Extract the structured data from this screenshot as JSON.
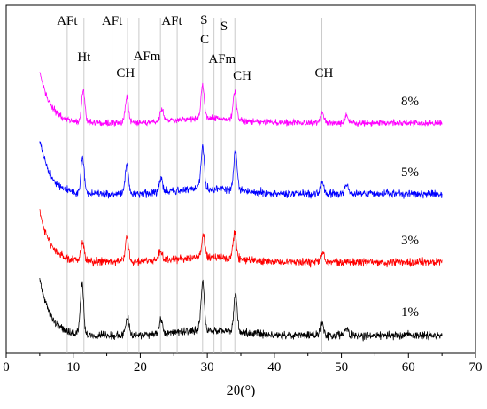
{
  "chart_data": {
    "type": "line",
    "title": "",
    "xlabel": "2θ(°)",
    "ylabel": "",
    "xlim": [
      0,
      70
    ],
    "xticks": [
      "0",
      "10",
      "20",
      "30",
      "40",
      "50",
      "60",
      "70"
    ],
    "x_range": [
      5,
      65
    ],
    "grid": false,
    "legend": "none",
    "series": [
      {
        "name": "8%",
        "color": "#ff00ff",
        "peaks": [
          [
            11.5,
            1.0
          ],
          [
            18.0,
            0.8
          ],
          [
            23.2,
            0.4
          ],
          [
            29.3,
            1.0
          ],
          [
            34.1,
            0.9
          ],
          [
            47.1,
            0.35
          ],
          [
            50.8,
            0.25
          ]
        ]
      },
      {
        "name": "5%",
        "color": "#0000ff",
        "peaks": [
          [
            11.4,
            1.1
          ],
          [
            18.0,
            0.9
          ],
          [
            23.1,
            0.4
          ],
          [
            29.3,
            1.2
          ],
          [
            34.2,
            1.2
          ],
          [
            47.1,
            0.4
          ],
          [
            50.8,
            0.25
          ]
        ]
      },
      {
        "name": "3%",
        "color": "#ff0000",
        "peaks": [
          [
            11.4,
            0.6
          ],
          [
            18.0,
            0.8
          ],
          [
            23.0,
            0.3
          ],
          [
            29.4,
            0.7
          ],
          [
            34.1,
            0.8
          ],
          [
            47.2,
            0.3
          ]
        ]
      },
      {
        "name": "1%",
        "color": "#000000",
        "peaks": [
          [
            11.3,
            1.4
          ],
          [
            18.1,
            0.5
          ],
          [
            23.1,
            0.4
          ],
          [
            29.3,
            1.4
          ],
          [
            34.2,
            1.1
          ],
          [
            47.1,
            0.4
          ],
          [
            50.8,
            0.2
          ]
        ]
      }
    ],
    "reference_lines_2theta": [
      9.1,
      11.6,
      15.8,
      18.1,
      19.8,
      23.0,
      25.5,
      29.3,
      31.0,
      32.1,
      34.1,
      47.1
    ],
    "annotations": [
      {
        "text": "AFt",
        "x": 9.1
      },
      {
        "text": "Ht",
        "x": 11.6
      },
      {
        "text": "AFt",
        "x": 15.8
      },
      {
        "text": "CH",
        "x": 17.8
      },
      {
        "text": "AFm",
        "x": 21.0
      },
      {
        "text": "AFt",
        "x": 24.7
      },
      {
        "text": "S",
        "x": 29.5
      },
      {
        "text": "C",
        "x": 29.6
      },
      {
        "text": "AFm",
        "x": 32.2
      },
      {
        "text": "S",
        "x": 32.5
      },
      {
        "text": "CH",
        "x": 35.2
      },
      {
        "text": "CH",
        "x": 47.4
      }
    ]
  }
}
